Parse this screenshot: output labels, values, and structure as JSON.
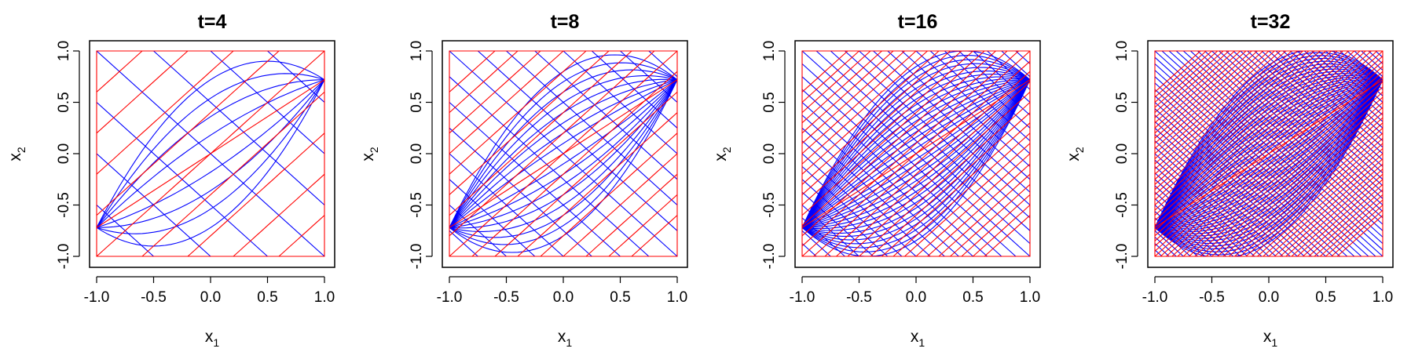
{
  "chart_data": [
    {
      "type": "line",
      "title": "t=4",
      "t": 4,
      "xlabel": {
        "base": "x",
        "sub": "1"
      },
      "ylabel": {
        "base": "x",
        "sub": "2"
      },
      "xlim": [
        -1.0,
        1.0
      ],
      "ylim": [
        -1.0,
        1.0
      ],
      "xticks": [
        "-1.0",
        "-0.5",
        "0.0",
        "0.5",
        "1.0"
      ],
      "yticks": [
        "-1.0",
        "-0.5",
        "0.0",
        "0.5",
        "1.0"
      ],
      "series": [
        {
          "color": "#0000ff",
          "type": "line"
        },
        {
          "color": "#ff0000",
          "type": "line"
        }
      ],
      "attractors": [
        [
          -1.0,
          -0.72
        ],
        [
          1.0,
          0.72
        ]
      ],
      "grid": false,
      "legend": "none"
    },
    {
      "type": "line",
      "title": "t=8",
      "t": 8,
      "xlabel": {
        "base": "x",
        "sub": "1"
      },
      "ylabel": {
        "base": "x",
        "sub": "2"
      },
      "xlim": [
        -1.0,
        1.0
      ],
      "ylim": [
        -1.0,
        1.0
      ],
      "xticks": [
        "-1.0",
        "-0.5",
        "0.0",
        "0.5",
        "1.0"
      ],
      "yticks": [
        "-1.0",
        "-0.5",
        "0.0",
        "0.5",
        "1.0"
      ],
      "series": [
        {
          "color": "#0000ff",
          "type": "line"
        },
        {
          "color": "#ff0000",
          "type": "line"
        }
      ],
      "attractors": [
        [
          -1.0,
          -0.72
        ],
        [
          1.0,
          0.72
        ]
      ],
      "grid": false,
      "legend": "none"
    },
    {
      "type": "line",
      "title": "t=16",
      "t": 16,
      "xlabel": {
        "base": "x",
        "sub": "1"
      },
      "ylabel": {
        "base": "x",
        "sub": "2"
      },
      "xlim": [
        -1.0,
        1.0
      ],
      "ylim": [
        -1.0,
        1.0
      ],
      "xticks": [
        "-1.0",
        "-0.5",
        "0.0",
        "0.5",
        "1.0"
      ],
      "yticks": [
        "-1.0",
        "-0.5",
        "0.0",
        "0.5",
        "1.0"
      ],
      "series": [
        {
          "color": "#0000ff",
          "type": "line"
        },
        {
          "color": "#ff0000",
          "type": "line"
        }
      ],
      "attractors": [
        [
          -1.0,
          -0.72
        ],
        [
          1.0,
          0.72
        ]
      ],
      "grid": false,
      "legend": "none"
    },
    {
      "type": "line",
      "title": "t=32",
      "t": 32,
      "xlabel": {
        "base": "x",
        "sub": "1"
      },
      "ylabel": {
        "base": "x",
        "sub": "2"
      },
      "xlim": [
        -1.0,
        1.0
      ],
      "ylim": [
        -1.0,
        1.0
      ],
      "xticks": [
        "-1.0",
        "-0.5",
        "0.0",
        "0.5",
        "1.0"
      ],
      "yticks": [
        "-1.0",
        "-0.5",
        "0.0",
        "0.5",
        "1.0"
      ],
      "series": [
        {
          "color": "#0000ff",
          "type": "line"
        },
        {
          "color": "#ff0000",
          "type": "line"
        }
      ],
      "attractors": [
        [
          -1.0,
          -0.72
        ],
        [
          1.0,
          0.72
        ]
      ],
      "grid": false,
      "legend": "none"
    }
  ]
}
